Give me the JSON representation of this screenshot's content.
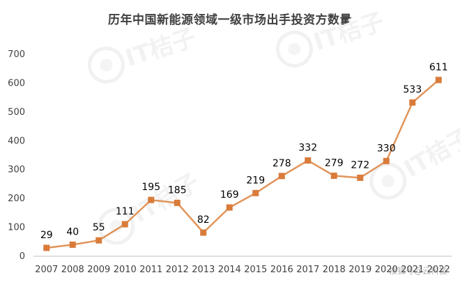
{
  "chart_data": {
    "type": "line",
    "title": "历年中国新能源领域一级市场出手投资方数量",
    "xlabel": "",
    "ylabel": "",
    "ylim": [
      0,
      700
    ],
    "yticks": [
      0,
      100,
      200,
      300,
      400,
      500,
      600,
      700
    ],
    "grid": false,
    "legend": "none",
    "categories": [
      "2007",
      "2008",
      "2009",
      "2010",
      "2011",
      "2012",
      "2013",
      "2014",
      "2015",
      "2016",
      "2017",
      "2018",
      "2019",
      "2020",
      "2021",
      "2022"
    ],
    "series": [
      {
        "values": [
          29,
          40,
          55,
          111,
          195,
          185,
          82,
          169,
          219,
          278,
          332,
          279,
          272,
          330,
          533,
          611
        ]
      }
    ],
    "colors": {
      "line": "#E0945A",
      "marker": "#D97B3A",
      "axis": "#BFBFBF",
      "text": "#404040"
    }
  },
  "watermarks": {
    "brand": "IT桔子",
    "caption": "搜狐号@云科技"
  }
}
